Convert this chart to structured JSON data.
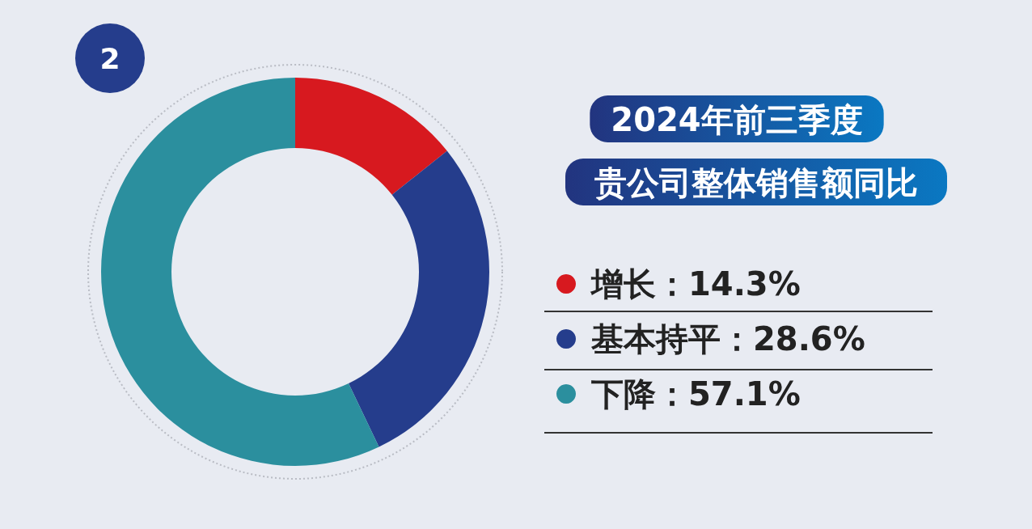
{
  "chart_data": {
    "type": "donut",
    "title": "2024年前三季度",
    "subtitle": "贵公司整体销售额同比",
    "annotations": [
      "2"
    ],
    "categories": [
      "增长",
      "基本持平",
      "下降"
    ],
    "values": [
      14.3,
      28.6,
      57.1
    ],
    "value_labels": [
      "14.3%",
      "28.6%",
      "57.1%"
    ],
    "colors": [
      "#d7191f",
      "#253d8c",
      "#2b8f9e"
    ],
    "legend": "right"
  }
}
